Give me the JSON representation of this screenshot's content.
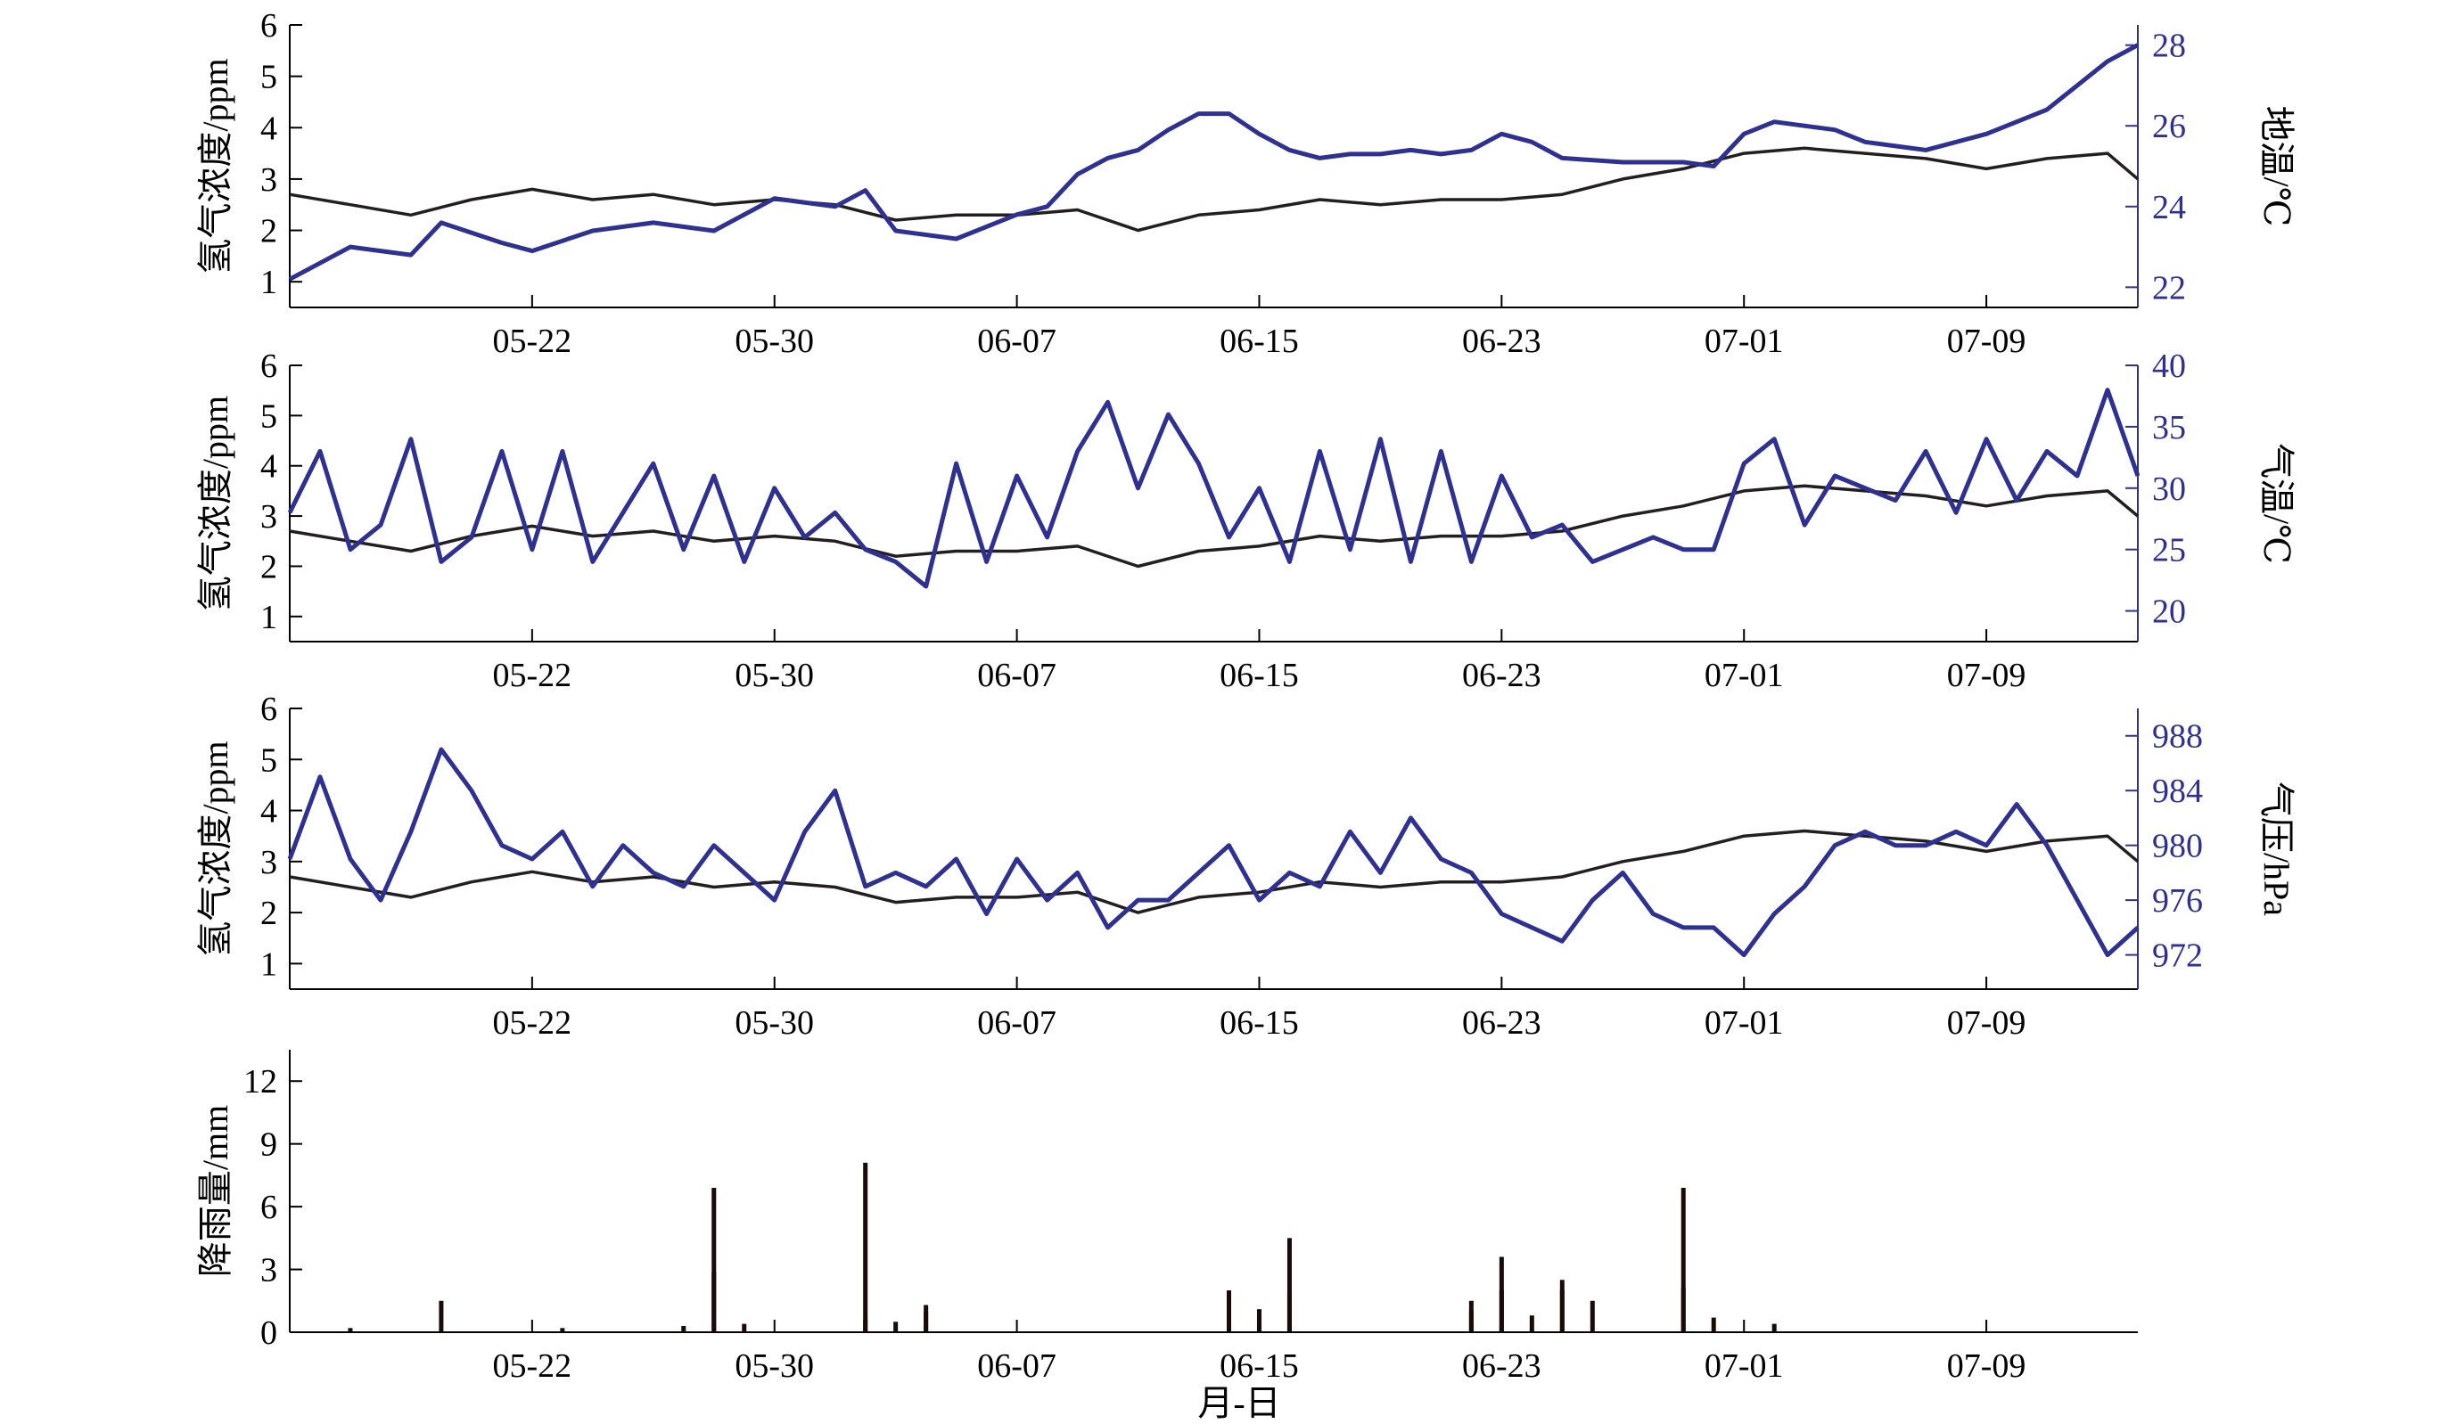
{
  "figure": {
    "x_axis_title": "月-日",
    "x_tick_labels": [
      "05-22",
      "05-30",
      "06-07",
      "06-15",
      "06-23",
      "07-01",
      "07-09"
    ]
  },
  "colors": {
    "hydrogen": "#231f20",
    "secondary": "#2e3192",
    "rain": "#1a0a0a",
    "rain_light": "#7a1a1a"
  },
  "chart_data": [
    {
      "type": "line",
      "x_start": "05-14",
      "x_end": "07-14",
      "x_ticks": [
        "05-22",
        "05-30",
        "06-07",
        "06-15",
        "06-23",
        "07-01",
        "07-09"
      ],
      "ylabel": "氢气浓度/ppm",
      "ylim": [
        0.5,
        6
      ],
      "yticks": [
        "1",
        "2",
        "3",
        "4",
        "5",
        "6"
      ],
      "y2label": "地温/℃",
      "y2lim": [
        21.5,
        28.5
      ],
      "y2ticks": [
        "22",
        "24",
        "26",
        "28"
      ],
      "series": [
        {
          "axis": "left",
          "color": "#231f20",
          "x": [
            "05-14",
            "05-16",
            "05-18",
            "05-20",
            "05-22",
            "05-24",
            "05-26",
            "05-28",
            "05-30",
            "06-01",
            "06-03",
            "06-05",
            "06-07",
            "06-09",
            "06-11",
            "06-13",
            "06-15",
            "06-17",
            "06-19",
            "06-21",
            "06-23",
            "06-25",
            "06-27",
            "06-29",
            "07-01",
            "07-03",
            "07-05",
            "07-07",
            "07-09",
            "07-11",
            "07-13",
            "07-14"
          ],
          "values": [
            2.7,
            2.5,
            2.3,
            2.6,
            2.8,
            2.6,
            2.7,
            2.5,
            2.6,
            2.5,
            2.2,
            2.3,
            2.3,
            2.4,
            2.0,
            2.3,
            2.4,
            2.6,
            2.5,
            2.6,
            2.6,
            2.7,
            3.0,
            3.2,
            3.5,
            3.6,
            3.5,
            3.4,
            3.2,
            3.4,
            3.5,
            3.0
          ]
        },
        {
          "axis": "right",
          "color": "#2e3192",
          "x": [
            "05-14",
            "05-15",
            "05-16",
            "05-18",
            "05-19",
            "05-21",
            "05-22",
            "05-24",
            "05-26",
            "05-28",
            "05-30",
            "06-01",
            "06-02",
            "06-03",
            "06-05",
            "06-07",
            "06-08",
            "06-09",
            "06-10",
            "06-11",
            "06-12",
            "06-13",
            "06-14",
            "06-15",
            "06-16",
            "06-17",
            "06-18",
            "06-19",
            "06-20",
            "06-21",
            "06-22",
            "06-23",
            "06-24",
            "06-25",
            "06-27",
            "06-29",
            "06-30",
            "07-01",
            "07-02",
            "07-04",
            "07-05",
            "07-06",
            "07-07",
            "07-09",
            "07-10",
            "07-11",
            "07-12",
            "07-13",
            "07-14"
          ],
          "values": [
            22.2,
            22.6,
            23.0,
            22.8,
            23.6,
            23.1,
            22.9,
            23.4,
            23.6,
            23.4,
            24.2,
            24.0,
            24.4,
            23.4,
            23.2,
            23.8,
            24.0,
            24.8,
            25.2,
            25.4,
            25.9,
            26.3,
            26.3,
            25.8,
            25.4,
            25.2,
            25.3,
            25.3,
            25.4,
            25.3,
            25.4,
            25.8,
            25.6,
            25.2,
            25.1,
            25.1,
            25.0,
            25.8,
            26.1,
            25.9,
            25.6,
            25.5,
            25.4,
            25.8,
            26.1,
            26.4,
            27.0,
            27.6,
            28.0
          ]
        }
      ]
    },
    {
      "type": "line",
      "x_start": "05-14",
      "x_end": "07-14",
      "x_ticks": [
        "05-22",
        "05-30",
        "06-07",
        "06-15",
        "06-23",
        "07-01",
        "07-09"
      ],
      "ylabel": "氢气浓度/ppm",
      "ylim": [
        0.5,
        6
      ],
      "yticks": [
        "1",
        "2",
        "3",
        "4",
        "5",
        "6"
      ],
      "y2label": "气温/℃",
      "y2lim": [
        17.5,
        40
      ],
      "y2ticks": [
        "20",
        "25",
        "30",
        "35",
        "40"
      ],
      "series": [
        {
          "axis": "left",
          "color": "#231f20",
          "x": [
            "05-14",
            "05-16",
            "05-18",
            "05-20",
            "05-22",
            "05-24",
            "05-26",
            "05-28",
            "05-30",
            "06-01",
            "06-03",
            "06-05",
            "06-07",
            "06-09",
            "06-11",
            "06-13",
            "06-15",
            "06-17",
            "06-19",
            "06-21",
            "06-23",
            "06-25",
            "06-27",
            "06-29",
            "07-01",
            "07-03",
            "07-05",
            "07-07",
            "07-09",
            "07-11",
            "07-13",
            "07-14"
          ],
          "values": [
            2.7,
            2.5,
            2.3,
            2.6,
            2.8,
            2.6,
            2.7,
            2.5,
            2.6,
            2.5,
            2.2,
            2.3,
            2.3,
            2.4,
            2.0,
            2.3,
            2.4,
            2.6,
            2.5,
            2.6,
            2.6,
            2.7,
            3.0,
            3.2,
            3.5,
            3.6,
            3.5,
            3.4,
            3.2,
            3.4,
            3.5,
            3.0
          ]
        },
        {
          "axis": "right",
          "color": "#2e3192",
          "x": [
            "05-14",
            "05-15",
            "05-16",
            "05-17",
            "05-18",
            "05-19",
            "05-20",
            "05-21",
            "05-22",
            "05-23",
            "05-24",
            "05-25",
            "05-26",
            "05-27",
            "05-28",
            "05-29",
            "05-30",
            "05-31",
            "06-01",
            "06-02",
            "06-03",
            "06-04",
            "06-05",
            "06-06",
            "06-07",
            "06-08",
            "06-09",
            "06-10",
            "06-11",
            "06-12",
            "06-13",
            "06-14",
            "06-15",
            "06-16",
            "06-17",
            "06-18",
            "06-19",
            "06-20",
            "06-21",
            "06-22",
            "06-23",
            "06-24",
            "06-25",
            "06-26",
            "06-27",
            "06-28",
            "06-29",
            "06-30",
            "07-01",
            "07-02",
            "07-03",
            "07-04",
            "07-05",
            "07-06",
            "07-07",
            "07-08",
            "07-09",
            "07-10",
            "07-11",
            "07-12",
            "07-13",
            "07-14"
          ],
          "values": [
            28,
            33,
            25,
            27,
            34,
            24,
            26,
            33,
            25,
            33,
            24,
            28,
            32,
            25,
            31,
            24,
            30,
            26,
            28,
            25,
            24,
            22,
            32,
            24,
            31,
            26,
            33,
            37,
            30,
            36,
            32,
            26,
            30,
            24,
            33,
            25,
            34,
            24,
            33,
            24,
            31,
            26,
            27,
            24,
            25,
            26,
            25,
            25,
            32,
            34,
            27,
            31,
            30,
            29,
            33,
            28,
            34,
            29,
            33,
            31,
            38,
            31
          ]
        }
      ]
    },
    {
      "type": "line",
      "x_start": "05-14",
      "x_end": "07-14",
      "x_ticks": [
        "05-22",
        "05-30",
        "06-07",
        "06-15",
        "06-23",
        "07-01",
        "07-09"
      ],
      "ylabel": "氢气浓度/ppm",
      "ylim": [
        0.5,
        6
      ],
      "yticks": [
        "1",
        "2",
        "3",
        "4",
        "5",
        "6"
      ],
      "y2label": "气压/hPa",
      "y2lim": [
        969.5,
        990
      ],
      "y2ticks": [
        "972",
        "976",
        "980",
        "984",
        "988"
      ],
      "series": [
        {
          "axis": "left",
          "color": "#231f20",
          "x": [
            "05-14",
            "05-16",
            "05-18",
            "05-20",
            "05-22",
            "05-24",
            "05-26",
            "05-28",
            "05-30",
            "06-01",
            "06-03",
            "06-05",
            "06-07",
            "06-09",
            "06-11",
            "06-13",
            "06-15",
            "06-17",
            "06-19",
            "06-21",
            "06-23",
            "06-25",
            "06-27",
            "06-29",
            "07-01",
            "07-03",
            "07-05",
            "07-07",
            "07-09",
            "07-11",
            "07-13",
            "07-14"
          ],
          "values": [
            2.7,
            2.5,
            2.3,
            2.6,
            2.8,
            2.6,
            2.7,
            2.5,
            2.6,
            2.5,
            2.2,
            2.3,
            2.3,
            2.4,
            2.0,
            2.3,
            2.4,
            2.6,
            2.5,
            2.6,
            2.6,
            2.7,
            3.0,
            3.2,
            3.5,
            3.6,
            3.5,
            3.4,
            3.2,
            3.4,
            3.5,
            3.0
          ]
        },
        {
          "axis": "right",
          "color": "#2e3192",
          "x": [
            "05-14",
            "05-15",
            "05-16",
            "05-17",
            "05-18",
            "05-19",
            "05-20",
            "05-21",
            "05-22",
            "05-23",
            "05-24",
            "05-25",
            "05-26",
            "05-27",
            "05-28",
            "05-29",
            "05-30",
            "05-31",
            "06-01",
            "06-02",
            "06-03",
            "06-04",
            "06-05",
            "06-06",
            "06-07",
            "06-08",
            "06-09",
            "06-10",
            "06-11",
            "06-12",
            "06-13",
            "06-14",
            "06-15",
            "06-16",
            "06-17",
            "06-18",
            "06-19",
            "06-20",
            "06-21",
            "06-22",
            "06-23",
            "06-24",
            "06-25",
            "06-26",
            "06-27",
            "06-28",
            "06-29",
            "06-30",
            "07-01",
            "07-02",
            "07-03",
            "07-04",
            "07-05",
            "07-06",
            "07-07",
            "07-08",
            "07-09",
            "07-10",
            "07-11",
            "07-12",
            "07-13",
            "07-14"
          ],
          "values": [
            979,
            985,
            979,
            976,
            981,
            987,
            984,
            980,
            979,
            981,
            977,
            980,
            978,
            977,
            980,
            978,
            976,
            981,
            984,
            977,
            978,
            977,
            979,
            975,
            979,
            976,
            978,
            974,
            976,
            976,
            978,
            980,
            976,
            978,
            977,
            981,
            978,
            982,
            979,
            978,
            975,
            974,
            973,
            976,
            978,
            975,
            974,
            974,
            972,
            975,
            977,
            980,
            981,
            980,
            980,
            981,
            980,
            983,
            980,
            976,
            972,
            974
          ]
        }
      ]
    },
    {
      "type": "bar",
      "x_start": "05-14",
      "x_end": "07-14",
      "x_ticks": [
        "05-22",
        "05-30",
        "06-07",
        "06-15",
        "06-23",
        "07-01",
        "07-09"
      ],
      "ylabel": "降雨量/mm",
      "ylim": [
        0,
        13.5
      ],
      "yticks": [
        "0",
        "3",
        "6",
        "9",
        "12"
      ],
      "bars": {
        "x": [
          "05-16",
          "05-19",
          "05-23",
          "05-27",
          "05-28",
          "05-28",
          "05-29",
          "06-02",
          "06-02",
          "06-03",
          "06-04",
          "06-04",
          "06-14",
          "06-15",
          "06-15",
          "06-16",
          "06-16",
          "06-22",
          "06-22",
          "06-23",
          "06-23",
          "06-24",
          "06-25",
          "06-25",
          "06-26",
          "06-29",
          "06-29",
          "06-30",
          "07-02"
        ],
        "values": [
          0.2,
          1.5,
          0.2,
          0.3,
          6.9,
          2.9,
          0.4,
          8.1,
          0.6,
          0.5,
          1.0,
          1.3,
          2.0,
          1.1,
          0.6,
          4.5,
          1.9,
          1.5,
          1.0,
          3.6,
          2.0,
          0.8,
          2.5,
          2.0,
          1.5,
          6.9,
          2.1,
          0.7,
          0.4
        ]
      }
    }
  ]
}
